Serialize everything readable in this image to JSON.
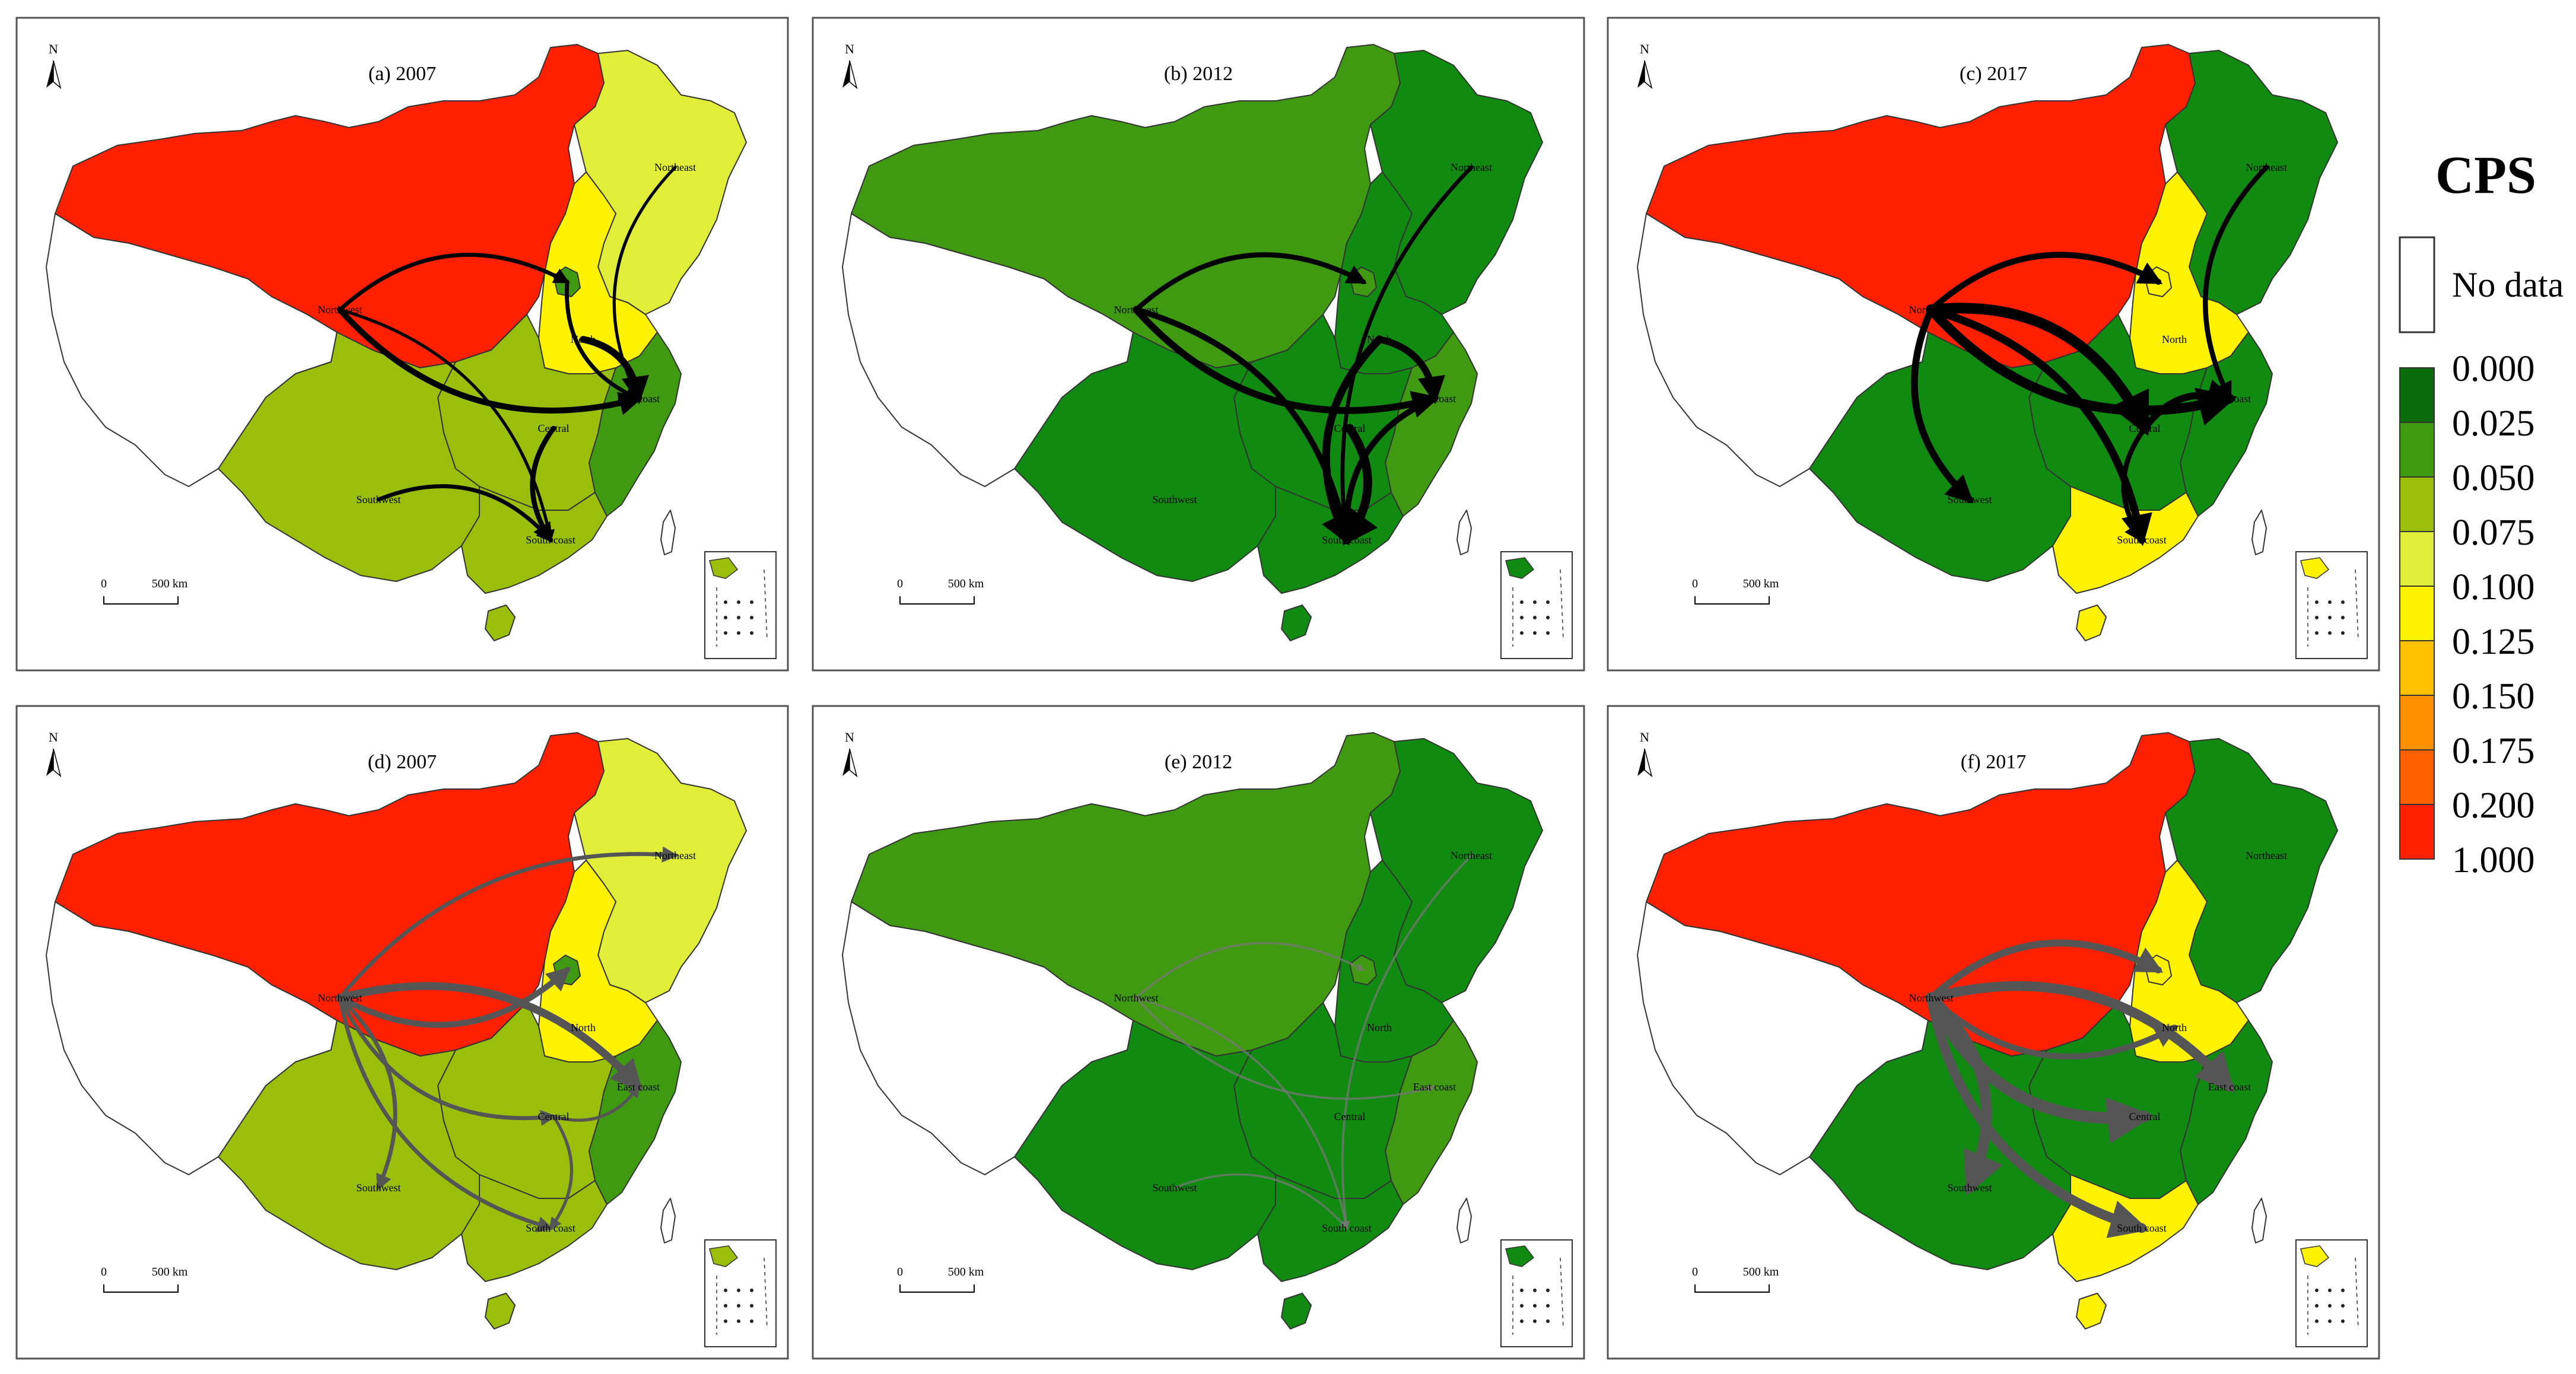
{
  "colors": {
    "northwest_red": "#ff2000",
    "light_green": "#99bf0a",
    "yellow_green": "#e0ee3a",
    "yellow": "#fff200",
    "dark_green": "#108a10",
    "mid_green": "#3f9a12",
    "flow_black": "#000000",
    "flow_gray": "#555555"
  },
  "common": {
    "north_label": "N",
    "scale_zero": "0",
    "scale_label": "500 km"
  },
  "panels": [
    {
      "title": "(a) 2007",
      "arrow_color": "#000000",
      "labels": {
        "northwest": "Northwest",
        "northeast": "Northeast",
        "north": "North",
        "central": "Central",
        "east": "East coast",
        "southwest": "Southwest",
        "south": "South coast"
      },
      "region_colors": {
        "northwest": "#ff2000",
        "northeast": "#e0ee3a",
        "north": "#fff200",
        "central": "#99bf0a",
        "east": "#3f9a12",
        "southwest": "#99bf0a",
        "south": "#99bf0a",
        "beijing": "#3f9a12"
      },
      "flows": [
        {
          "from": "northwest",
          "to": "beijing",
          "weight": 3
        },
        {
          "from": "northwest",
          "to": "east",
          "weight": 5
        },
        {
          "from": "northwest",
          "to": "south",
          "weight": 2
        },
        {
          "from": "northeast",
          "to": "east",
          "weight": 2
        },
        {
          "from": "north",
          "to": "east",
          "weight": 6
        },
        {
          "from": "central",
          "to": "south",
          "weight": 4
        },
        {
          "from": "southwest",
          "to": "south",
          "weight": 3
        },
        {
          "from": "beijing",
          "to": "east",
          "weight": 3
        }
      ]
    },
    {
      "title": "(b) 2012",
      "arrow_color": "#000000",
      "labels": {
        "northwest": "Northwest",
        "northeast": "Northeast",
        "north": "North",
        "central": "Central",
        "east": "East coast",
        "southwest": "Southwest",
        "south": "South coast"
      },
      "region_colors": {
        "northwest": "#3f9a12",
        "northeast": "#108a10",
        "north": "#108a10",
        "central": "#108a10",
        "east": "#3f9a12",
        "southwest": "#108a10",
        "south": "#108a10",
        "beijing": "#3f9a12"
      },
      "flows": [
        {
          "from": "northwest",
          "to": "beijing",
          "weight": 4
        },
        {
          "from": "northwest",
          "to": "east",
          "weight": 6
        },
        {
          "from": "northwest",
          "to": "south",
          "weight": 5
        },
        {
          "from": "northeast",
          "to": "south",
          "weight": 3
        },
        {
          "from": "north",
          "to": "east",
          "weight": 6
        },
        {
          "from": "north",
          "to": "south",
          "weight": 7
        },
        {
          "from": "central",
          "to": "south",
          "weight": 8
        },
        {
          "from": "east",
          "to": "south",
          "weight": 5
        }
      ]
    },
    {
      "title": "(c) 2017",
      "arrow_color": "#000000",
      "labels": {
        "northwest": "Northwest",
        "northeast": "Northeast",
        "north": "North",
        "central": "Central",
        "east": "East coast",
        "southwest": "Southwest",
        "south": "South coast"
      },
      "region_colors": {
        "northwest": "#ff2000",
        "northeast": "#108a10",
        "north": "#fff200",
        "central": "#108a10",
        "east": "#108a10",
        "southwest": "#108a10",
        "south": "#fff200",
        "beijing": "#fff200"
      },
      "flows": [
        {
          "from": "northwest",
          "to": "beijing",
          "weight": 5
        },
        {
          "from": "northwest",
          "to": "east",
          "weight": 9
        },
        {
          "from": "northwest",
          "to": "central",
          "weight": 10
        },
        {
          "from": "northwest",
          "to": "southwest",
          "weight": 6
        },
        {
          "from": "northwest",
          "to": "south",
          "weight": 7
        },
        {
          "from": "northeast",
          "to": "east",
          "weight": 4
        },
        {
          "from": "central",
          "to": "east",
          "weight": 6
        },
        {
          "from": "central",
          "to": "south",
          "weight": 4
        }
      ]
    },
    {
      "title": "(d) 2007",
      "arrow_color": "#555555",
      "labels": {
        "northwest": "Northwest",
        "northeast": "Northeast",
        "north": "North",
        "central": "Central",
        "east": "East coast",
        "southwest": "Southwest",
        "south": "South coast"
      },
      "region_colors": {
        "northwest": "#ff2000",
        "northeast": "#e0ee3a",
        "north": "#fff200",
        "central": "#99bf0a",
        "east": "#3f9a12",
        "southwest": "#99bf0a",
        "south": "#99bf0a",
        "beijing": "#3f9a12"
      },
      "flows": [
        {
          "from": "northwest",
          "to": "northeast",
          "weight": 3
        },
        {
          "from": "northwest",
          "to": "beijing",
          "weight": 5
        },
        {
          "from": "northwest",
          "to": "east",
          "weight": 7
        },
        {
          "from": "northwest",
          "to": "central",
          "weight": 3
        },
        {
          "from": "northwest",
          "to": "southwest",
          "weight": 3
        },
        {
          "from": "northwest",
          "to": "south",
          "weight": 3
        },
        {
          "from": "central",
          "to": "south",
          "weight": 2
        },
        {
          "from": "central",
          "to": "east",
          "weight": 2
        }
      ]
    },
    {
      "title": "(e) 2012",
      "arrow_color": "#777777",
      "labels": {
        "northwest": "Northwest",
        "northeast": "Northeast",
        "north": "North",
        "central": "Central",
        "east": "East coast",
        "southwest": "Southwest",
        "south": "South coast"
      },
      "region_colors": {
        "northwest": "#3f9a12",
        "northeast": "#108a10",
        "north": "#108a10",
        "central": "#108a10",
        "east": "#3f9a12",
        "southwest": "#108a10",
        "south": "#108a10",
        "beijing": "#3f9a12"
      },
      "flows": [
        {
          "from": "northwest",
          "to": "beijing",
          "weight": 1
        },
        {
          "from": "northwest",
          "to": "east",
          "weight": 1
        },
        {
          "from": "northwest",
          "to": "south",
          "weight": 1
        },
        {
          "from": "northeast",
          "to": "south",
          "weight": 1
        },
        {
          "from": "southwest",
          "to": "south",
          "weight": 1
        }
      ]
    },
    {
      "title": "(f) 2017",
      "arrow_color": "#555555",
      "labels": {
        "northwest": "Northwest",
        "northeast": "Northeast",
        "north": "North",
        "central": "Central",
        "east": "East coast",
        "southwest": "Southwest",
        "south": "South coast"
      },
      "region_colors": {
        "northwest": "#ff2000",
        "northeast": "#108a10",
        "north": "#fff200",
        "central": "#108a10",
        "east": "#108a10",
        "southwest": "#108a10",
        "south": "#fff200",
        "beijing": "#fff200"
      },
      "flows": [
        {
          "from": "northwest",
          "to": "beijing",
          "weight": 6
        },
        {
          "from": "northwest",
          "to": "north",
          "weight": 5
        },
        {
          "from": "northwest",
          "to": "east",
          "weight": 9
        },
        {
          "from": "northwest",
          "to": "central",
          "weight": 11
        },
        {
          "from": "northwest",
          "to": "southwest",
          "weight": 10
        },
        {
          "from": "northwest",
          "to": "south",
          "weight": 9
        }
      ]
    }
  ],
  "legend": {
    "title": "CPS",
    "no_data": "No data",
    "bins": [
      {
        "label": "0.000",
        "color": "#0b6a0b"
      },
      {
        "label": "0.025",
        "color": "#3f9a12"
      },
      {
        "label": "0.050",
        "color": "#99bf0a"
      },
      {
        "label": "0.075",
        "color": "#e0ee3a"
      },
      {
        "label": "0.100",
        "color": "#fff200"
      },
      {
        "label": "0.125",
        "color": "#ffc000"
      },
      {
        "label": "0.150",
        "color": "#ff9000"
      },
      {
        "label": "0.175",
        "color": "#ff6000"
      },
      {
        "label": "0.200",
        "color": "#ff2000"
      },
      {
        "label": "1.000",
        "color": null
      }
    ]
  }
}
